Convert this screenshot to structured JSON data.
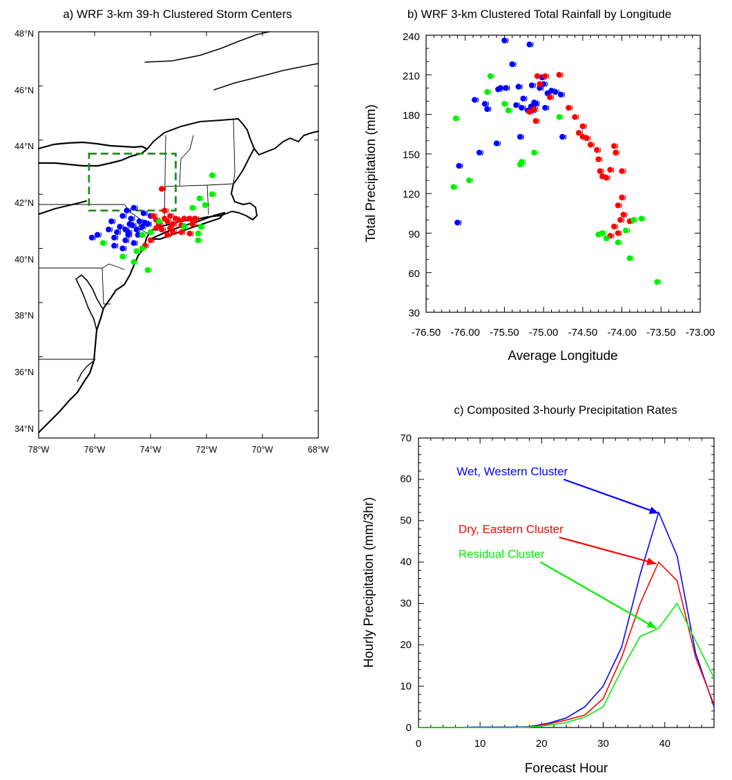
{
  "colors": {
    "wet": "#0000ff",
    "dry": "#ff0000",
    "residual": "#00ee00",
    "box": "#228b22"
  },
  "chart_data": [
    {
      "type": "map",
      "title": "a) WRF 3-km 39-h Clustered Storm Centers",
      "x_ticks": [
        "78°W",
        "76°W",
        "74°W",
        "72°W",
        "70°W",
        "68°W"
      ],
      "y_ticks": [
        "34°N",
        "36°N",
        "38°N",
        "40°N",
        "42°N",
        "44°N",
        "46°N",
        "48°N"
      ],
      "xlim": [
        -78,
        -68
      ],
      "ylim": [
        33,
        48
      ],
      "study_box": {
        "lon": [
          -76.2,
          -73.1
        ],
        "lat": [
          41.4,
          43.5
        ]
      },
      "series": [
        {
          "key": "wet",
          "points": [
            [
              -76.1,
              40.4
            ],
            [
              -75.9,
              40.5
            ],
            [
              -75.5,
              40.7
            ],
            [
              -75.3,
              40.1
            ],
            [
              -75.2,
              40.6
            ],
            [
              -75.1,
              40.8
            ],
            [
              -75.0,
              40.0
            ],
            [
              -74.9,
              40.3
            ],
            [
              -74.8,
              40.6
            ],
            [
              -74.75,
              40.9
            ],
            [
              -74.7,
              41.1
            ],
            [
              -74.6,
              40.2
            ],
            [
              -74.5,
              40.7
            ],
            [
              -74.4,
              41.0
            ],
            [
              -74.3,
              40.8
            ],
            [
              -74.25,
              41.3
            ],
            [
              -74.2,
              40.95
            ],
            [
              -74.1,
              40.9
            ],
            [
              -74.0,
              41.2
            ],
            [
              -75.4,
              41.0
            ],
            [
              -75.0,
              41.2
            ],
            [
              -74.85,
              41.4
            ],
            [
              -74.6,
              41.5
            ],
            [
              -74.9,
              40.7
            ],
            [
              -75.3,
              40.4
            ],
            [
              -74.8,
              40.5
            ],
            [
              -74.65,
              40.85
            ],
            [
              -74.45,
              40.5
            ]
          ]
        },
        {
          "key": "dry",
          "points": [
            [
              -73.6,
              42.2
            ],
            [
              -73.9,
              41.2
            ],
            [
              -73.8,
              41.05
            ],
            [
              -73.7,
              40.9
            ],
            [
              -73.5,
              41.1
            ],
            [
              -73.4,
              41.0
            ],
            [
              -73.3,
              41.2
            ],
            [
              -73.2,
              40.9
            ],
            [
              -73.1,
              41.1
            ],
            [
              -73.0,
              41.05
            ],
            [
              -72.9,
              40.85
            ],
            [
              -72.8,
              41.1
            ],
            [
              -72.6,
              41.1
            ],
            [
              -72.5,
              41.05
            ],
            [
              -72.4,
              41.1
            ],
            [
              -73.6,
              40.7
            ],
            [
              -73.2,
              40.6
            ],
            [
              -72.9,
              40.6
            ],
            [
              -72.6,
              40.55
            ],
            [
              -73.4,
              40.5
            ],
            [
              -74.0,
              40.3
            ],
            [
              -74.2,
              40.1
            ],
            [
              -73.5,
              41.4
            ],
            [
              -73.3,
              40.75
            ],
            [
              -73.8,
              40.75
            ],
            [
              -72.5,
              40.9
            ]
          ]
        },
        {
          "key": "residual",
          "points": [
            [
              -71.8,
              42.7
            ],
            [
              -72.25,
              41.85
            ],
            [
              -72.05,
              41.6
            ],
            [
              -72.5,
              41.5
            ],
            [
              -71.8,
              42.0
            ],
            [
              -72.2,
              40.8
            ],
            [
              -72.8,
              40.8
            ],
            [
              -72.3,
              40.3
            ],
            [
              -74.0,
              40.6
            ],
            [
              -74.3,
              40.0
            ],
            [
              -74.5,
              39.9
            ],
            [
              -74.1,
              39.2
            ],
            [
              -75.0,
              39.7
            ],
            [
              -75.7,
              40.2
            ],
            [
              -74.3,
              40.5
            ],
            [
              -73.7,
              41.0
            ],
            [
              -74.6,
              39.5
            ],
            [
              -72.3,
              40.55
            ]
          ]
        }
      ]
    },
    {
      "type": "scatter",
      "title": "b) WRF 3-km Clustered Total Rainfall by Longitude",
      "xlabel": "Average Longitude",
      "ylabel": "Total Precipitation (mm)",
      "xlim": [
        -76.5,
        -73.0
      ],
      "ylim": [
        30,
        240
      ],
      "x_ticks": [
        -76.5,
        -76.0,
        -75.5,
        -75.0,
        -74.5,
        -74.0,
        -73.5,
        -73.0
      ],
      "x_tick_labels": [
        "-76.50",
        "-76.00",
        "-75.50",
        "-75.00",
        "-74.50",
        "-74.00",
        "-73.50",
        "-73.00"
      ],
      "y_ticks": [
        30,
        60,
        90,
        120,
        150,
        180,
        210,
        240
      ],
      "series": [
        {
          "key": "wet",
          "points": [
            [
              -76.1,
              98
            ],
            [
              -76.08,
              141
            ],
            [
              -75.88,
              191
            ],
            [
              -75.82,
              151
            ],
            [
              -75.75,
              188
            ],
            [
              -75.72,
              184
            ],
            [
              -75.6,
              158
            ],
            [
              -75.58,
              199
            ],
            [
              -75.55,
              200
            ],
            [
              -75.5,
              236
            ],
            [
              -75.48,
              200
            ],
            [
              -75.4,
              218
            ],
            [
              -75.35,
              187
            ],
            [
              -75.32,
              201
            ],
            [
              -75.3,
              163
            ],
            [
              -75.28,
              185
            ],
            [
              -75.26,
              192
            ],
            [
              -75.2,
              183
            ],
            [
              -75.18,
              233
            ],
            [
              -75.16,
              186
            ],
            [
              -75.14,
              183
            ],
            [
              -75.12,
              189
            ],
            [
              -75.1,
              188
            ],
            [
              -75.05,
              200
            ],
            [
              -75.02,
              208
            ],
            [
              -75.0,
              203
            ],
            [
              -74.98,
              185
            ],
            [
              -74.95,
              196
            ],
            [
              -74.9,
              198
            ],
            [
              -74.85,
              197
            ],
            [
              -74.78,
              195
            ],
            [
              -74.76,
              163
            ],
            [
              -75.15,
              202
            ]
          ]
        },
        {
          "key": "dry",
          "points": [
            [
              -75.08,
              209
            ],
            [
              -75.05,
              203
            ],
            [
              -75.12,
              184
            ],
            [
              -75.1,
              175
            ],
            [
              -75.18,
              182
            ],
            [
              -74.98,
              209
            ],
            [
              -74.92,
              193
            ],
            [
              -74.8,
              210
            ],
            [
              -74.68,
              185
            ],
            [
              -74.6,
              178
            ],
            [
              -74.55,
              166
            ],
            [
              -74.5,
              171
            ],
            [
              -74.45,
              162
            ],
            [
              -74.4,
              157
            ],
            [
              -74.32,
              153
            ],
            [
              -74.3,
              146
            ],
            [
              -74.28,
              137
            ],
            [
              -74.25,
              133
            ],
            [
              -74.2,
              132
            ],
            [
              -74.15,
              138
            ],
            [
              -74.1,
              156
            ],
            [
              -74.08,
              151
            ],
            [
              -74.0,
              137
            ],
            [
              -74.0,
              117
            ],
            [
              -74.05,
              111
            ],
            [
              -74.02,
              100
            ],
            [
              -73.98,
              104
            ],
            [
              -74.1,
              95
            ],
            [
              -74.15,
              88
            ],
            [
              -74.05,
              90
            ],
            [
              -73.9,
              99
            ],
            [
              -74.5,
              163
            ]
          ]
        },
        {
          "key": "residual",
          "points": [
            [
              -76.15,
              125
            ],
            [
              -76.12,
              177
            ],
            [
              -75.95,
              130
            ],
            [
              -75.72,
              197
            ],
            [
              -75.68,
              209
            ],
            [
              -75.5,
              188
            ],
            [
              -75.45,
              183
            ],
            [
              -75.3,
              142
            ],
            [
              -75.28,
              144
            ],
            [
              -75.12,
              151
            ],
            [
              -74.8,
              178
            ],
            [
              -74.3,
              89
            ],
            [
              -74.25,
              90
            ],
            [
              -74.2,
              86
            ],
            [
              -74.05,
              83
            ],
            [
              -73.95,
              92
            ],
            [
              -73.9,
              71
            ],
            [
              -73.85,
              100
            ],
            [
              -73.75,
              101
            ],
            [
              -73.55,
              53
            ]
          ]
        }
      ]
    },
    {
      "type": "line",
      "title": "c) Composited 3-hourly Precipitation Rates",
      "xlabel": "Forecast Hour",
      "ylabel": "Hourly Precipitation (mm/3hr)",
      "xlim": [
        0,
        48
      ],
      "ylim": [
        0,
        70
      ],
      "x_ticks": [
        0,
        10,
        20,
        30,
        40
      ],
      "y_ticks": [
        0,
        10,
        20,
        30,
        40,
        50,
        60,
        70
      ],
      "x": [
        0,
        3,
        6,
        9,
        12,
        15,
        18,
        21,
        24,
        27,
        30,
        33,
        36,
        39,
        42,
        45,
        48
      ],
      "series": [
        {
          "key": "wet",
          "name": "Wet, Western Cluster",
          "values": [
            0,
            0,
            0,
            0.1,
            0.1,
            0.1,
            0.2,
            1.0,
            2.3,
            5.0,
            10.0,
            19.5,
            37.0,
            52.0,
            41.5,
            18.0,
            5.0
          ]
        },
        {
          "key": "dry",
          "name": "Dry, Eastern Cluster",
          "values": [
            0,
            0,
            0,
            0,
            0,
            0,
            0.1,
            0.8,
            1.8,
            3.0,
            7.0,
            17.0,
            30.0,
            40.0,
            35.5,
            17.0,
            5.5
          ]
        },
        {
          "key": "residual",
          "name": "Residual Cluster",
          "values": [
            0,
            0,
            0,
            0,
            0,
            0,
            0.1,
            0.5,
            1.2,
            2.5,
            5.0,
            14.0,
            22.0,
            24.0,
            30.0,
            21.0,
            12.0
          ]
        }
      ],
      "annotations": [
        {
          "key": "wet",
          "text": "Wet, Western Cluster",
          "at": [
            6.2,
            61
          ],
          "arrow_to": [
            39.0,
            51.8
          ]
        },
        {
          "key": "dry",
          "text": "Dry, Eastern Cluster",
          "at": [
            6.5,
            47
          ],
          "arrow_to": [
            38.6,
            39.6
          ]
        },
        {
          "key": "residual",
          "text": "Residual Cluster",
          "at": [
            6.5,
            41
          ],
          "arrow_to": [
            38.6,
            24.0
          ]
        }
      ]
    }
  ]
}
